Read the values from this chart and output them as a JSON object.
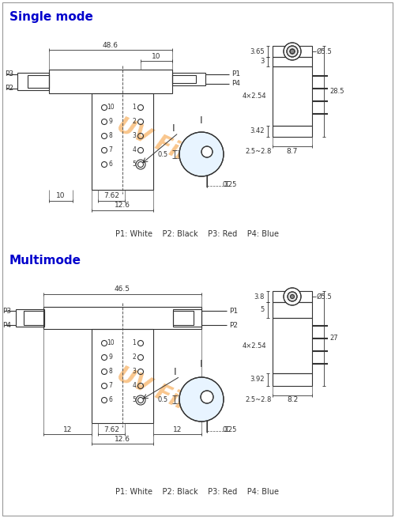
{
  "title_sm": "Single mode",
  "title_mm": "Multimode",
  "title_color": "#0000CC",
  "line_color": "#333333",
  "bg_color": "#ffffff",
  "watermark_color": "#F5A040",
  "sm": {
    "dim_486": "48.6",
    "dim_10r": "10",
    "dim_10l": "10",
    "dim_762": "7.62",
    "dim_126": "12.6",
    "dim_05": "0.5",
    "dim_025": "0.25",
    "side_top1": "3.65",
    "side_top2": "3",
    "side_dia": "Ø5.5",
    "side_total": "28.5",
    "side_bot": "3.42",
    "side_w": "8.7",
    "side_pins": "4×2.54",
    "side_side": "2.5~2.8"
  },
  "mm": {
    "dim_465": "46.5",
    "dim_12l": "12",
    "dim_12r": "12",
    "dim_762": "7.62",
    "dim_126": "12.6",
    "dim_05": "0.5",
    "dim_025": "0.25",
    "side_top1": "3.8",
    "side_top2": "5",
    "side_dia": "Ø5.5",
    "side_total": "27",
    "side_bot": "3.92",
    "side_w": "8.2",
    "side_pins": "4×2.54",
    "side_side": "2.5~2.8"
  },
  "pin_label": "P1: White    P2: Black    P3: Red    P4: Blue"
}
